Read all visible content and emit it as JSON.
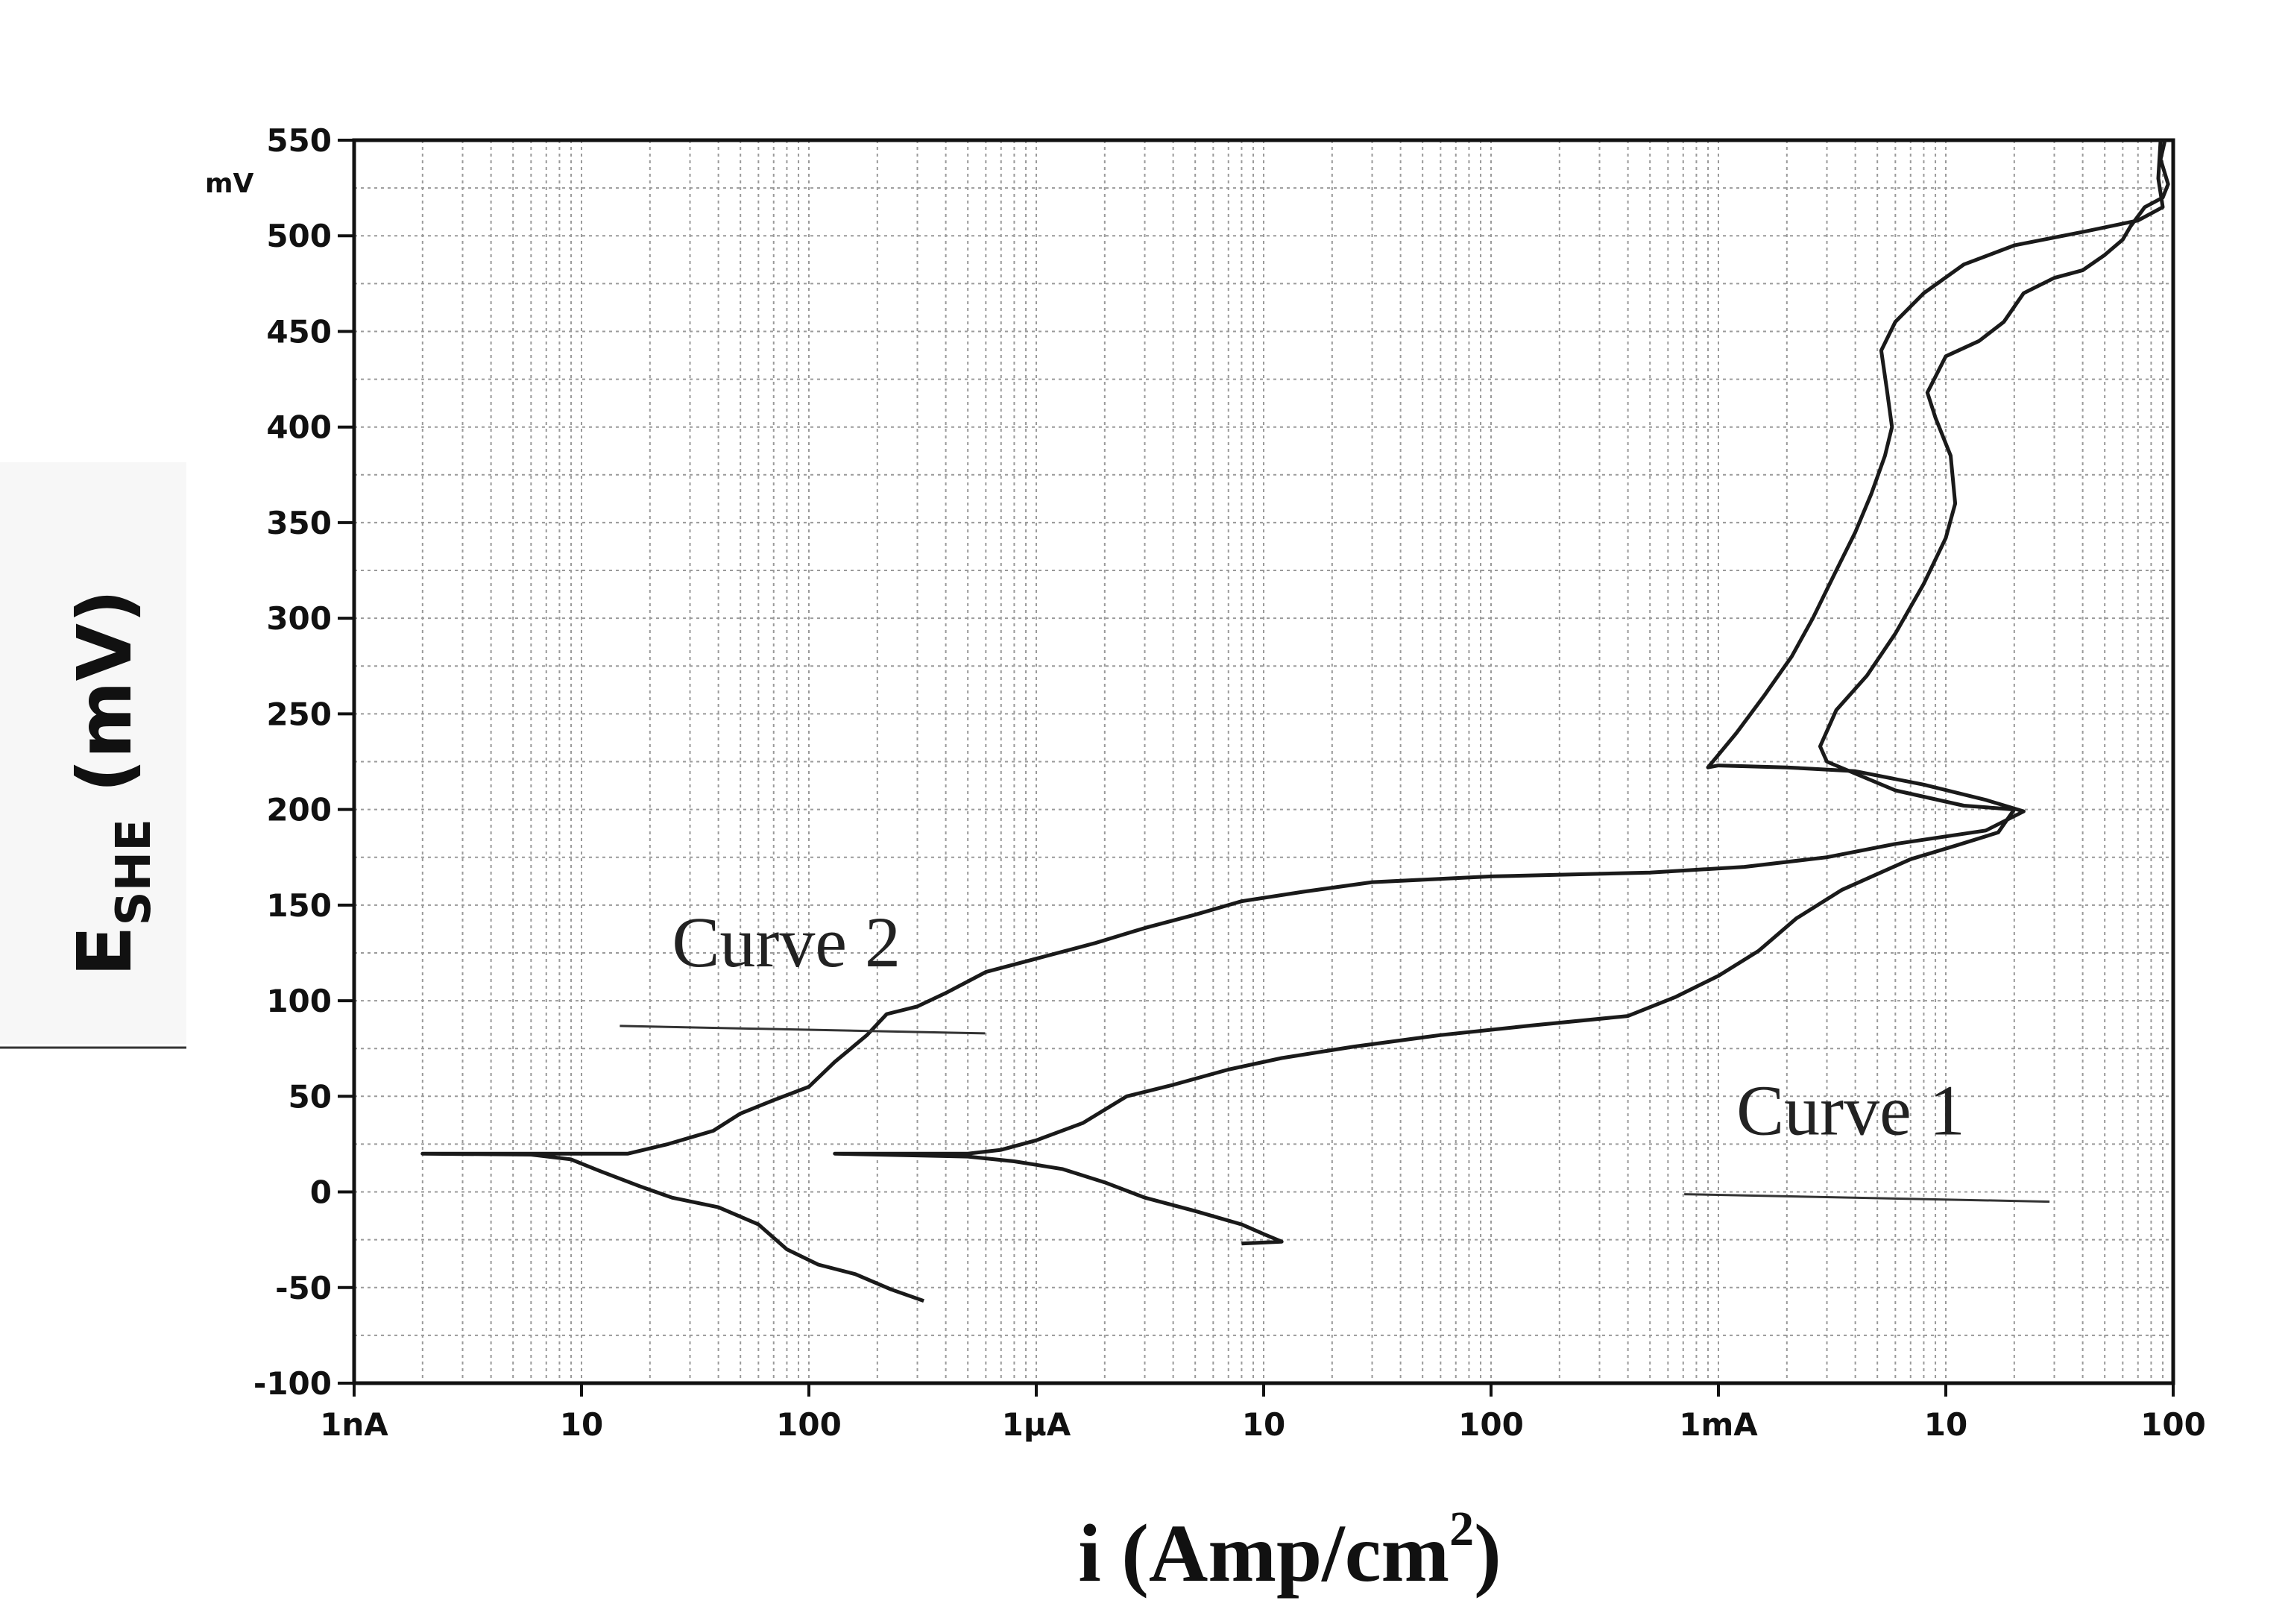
{
  "chart_data": {
    "type": "line",
    "title": "",
    "xscale": "log",
    "xlim": [
      1e-09,
      0.1
    ],
    "ylim": [
      -100,
      550
    ],
    "grid": true,
    "xlabel": "i (Amp/cm",
    "xlabel_sup": "2",
    "xlabel_end": ")",
    "ylabel": "E",
    "ylabel_sub": "SHE",
    "ylabel_end": " (mV)",
    "y_unit": "mV",
    "y_ticks": [
      {
        "value": -100,
        "label": "-100"
      },
      {
        "value": -50,
        "label": "-50"
      },
      {
        "value": 0,
        "label": "0"
      },
      {
        "value": 50,
        "label": "50"
      },
      {
        "value": 100,
        "label": "100"
      },
      {
        "value": 150,
        "label": "150"
      },
      {
        "value": 200,
        "label": "200"
      },
      {
        "value": 250,
        "label": "250"
      },
      {
        "value": 300,
        "label": "300"
      },
      {
        "value": 350,
        "label": "350"
      },
      {
        "value": 400,
        "label": "400"
      },
      {
        "value": 450,
        "label": "450"
      },
      {
        "value": 500,
        "label": "500"
      },
      {
        "value": 550,
        "label": "550"
      }
    ],
    "x_ticks": [
      {
        "value": 1e-09,
        "label": "1nA"
      },
      {
        "value": 1e-08,
        "label": "10"
      },
      {
        "value": 1e-07,
        "label": "100"
      },
      {
        "value": 1e-06,
        "label": "1µA"
      },
      {
        "value": 1e-05,
        "label": "10"
      },
      {
        "value": 0.0001,
        "label": "100"
      },
      {
        "value": 0.001,
        "label": "1mA"
      },
      {
        "value": 0.01,
        "label": "10"
      },
      {
        "value": 0.1,
        "label": "100"
      }
    ],
    "annotations": [
      {
        "text": "Curve 2",
        "x": 2.5e-08,
        "y": 118
      },
      {
        "text": "Curve 1",
        "x": 0.0012,
        "y": 30
      }
    ],
    "series": [
      {
        "name": "Curve 2",
        "points": [
          [
            3.2e-07,
            -57
          ],
          [
            2.3e-07,
            -51
          ],
          [
            1.6e-07,
            -43
          ],
          [
            1.1e-07,
            -38
          ],
          [
            8e-08,
            -30
          ],
          [
            6e-08,
            -17
          ],
          [
            4e-08,
            -8
          ],
          [
            2.5e-08,
            -3
          ],
          [
            1.8e-08,
            3
          ],
          [
            1.2e-08,
            11
          ],
          [
            9e-09,
            17
          ],
          [
            6e-09,
            19.5
          ],
          [
            2e-09,
            20
          ],
          [
            6e-09,
            20
          ],
          [
            1.6e-08,
            20
          ],
          [
            2.4e-08,
            25
          ],
          [
            3.8e-08,
            32
          ],
          [
            5e-08,
            41
          ],
          [
            7e-08,
            48
          ],
          [
            1e-07,
            55
          ],
          [
            1.3e-07,
            68
          ],
          [
            1.8e-07,
            82
          ],
          [
            2.2e-07,
            93
          ],
          [
            3e-07,
            97
          ],
          [
            4e-07,
            104
          ],
          [
            6e-07,
            115
          ],
          [
            1e-06,
            122
          ],
          [
            1.8e-06,
            130
          ],
          [
            3e-06,
            138
          ],
          [
            5e-06,
            145
          ],
          [
            8e-06,
            152
          ],
          [
            1.5e-05,
            157
          ],
          [
            3e-05,
            162
          ],
          [
            0.0001,
            165
          ],
          [
            0.0005,
            167
          ],
          [
            0.0013,
            170
          ],
          [
            0.003,
            175
          ],
          [
            0.006,
            182
          ],
          [
            0.015,
            189
          ],
          [
            0.022,
            199
          ],
          [
            0.015,
            205
          ],
          [
            0.008,
            213
          ],
          [
            0.004,
            220
          ],
          [
            0.002,
            222
          ],
          [
            0.001,
            223
          ],
          [
            0.0009,
            222
          ],
          [
            0.0012,
            240
          ],
          [
            0.0016,
            260
          ],
          [
            0.0021,
            280
          ],
          [
            0.0026,
            300
          ],
          [
            0.0033,
            325
          ],
          [
            0.004,
            345
          ],
          [
            0.0047,
            365
          ],
          [
            0.0054,
            385
          ],
          [
            0.0058,
            400
          ],
          [
            0.0055,
            420
          ],
          [
            0.0052,
            440
          ],
          [
            0.006,
            455
          ],
          [
            0.008,
            470
          ],
          [
            0.012,
            485
          ],
          [
            0.02,
            495
          ],
          [
            0.04,
            502
          ],
          [
            0.07,
            508
          ],
          [
            0.09,
            515
          ],
          [
            0.086,
            530
          ],
          [
            0.088,
            550
          ]
        ]
      },
      {
        "name": "Curve 1",
        "points": [
          [
            8e-06,
            -27
          ],
          [
            1.2e-05,
            -26
          ],
          [
            1e-05,
            -22
          ],
          [
            8e-06,
            -17
          ],
          [
            5e-06,
            -10
          ],
          [
            3e-06,
            -3
          ],
          [
            2e-06,
            5
          ],
          [
            1.3e-06,
            12
          ],
          [
            8e-07,
            16
          ],
          [
            5e-07,
            18.5
          ],
          [
            1.3e-07,
            20
          ],
          [
            5e-07,
            20
          ],
          [
            7e-07,
            22
          ],
          [
            1e-06,
            27
          ],
          [
            1.6e-06,
            36
          ],
          [
            2.5e-06,
            50
          ],
          [
            4e-06,
            56
          ],
          [
            7e-06,
            64
          ],
          [
            1.2e-05,
            70
          ],
          [
            2.5e-05,
            76
          ],
          [
            6e-05,
            82
          ],
          [
            0.00015,
            87
          ],
          [
            0.0004,
            92
          ],
          [
            0.00065,
            102
          ],
          [
            0.001,
            113
          ],
          [
            0.0015,
            126
          ],
          [
            0.0022,
            143
          ],
          [
            0.0035,
            158
          ],
          [
            0.007,
            174
          ],
          [
            0.011,
            181
          ],
          [
            0.017,
            188
          ],
          [
            0.02,
            200
          ],
          [
            0.012,
            202
          ],
          [
            0.006,
            210
          ],
          [
            0.003,
            225
          ],
          [
            0.0028,
            233
          ],
          [
            0.0033,
            252
          ],
          [
            0.0045,
            270
          ],
          [
            0.006,
            292
          ],
          [
            0.008,
            318
          ],
          [
            0.01,
            342
          ],
          [
            0.011,
            360
          ],
          [
            0.0105,
            385
          ],
          [
            0.009,
            405
          ],
          [
            0.0083,
            418
          ],
          [
            0.01,
            437
          ],
          [
            0.014,
            445
          ],
          [
            0.018,
            455
          ],
          [
            0.022,
            470
          ],
          [
            0.03,
            478
          ],
          [
            0.04,
            482
          ],
          [
            0.05,
            490
          ],
          [
            0.06,
            498
          ],
          [
            0.065,
            505
          ],
          [
            0.075,
            515
          ],
          [
            0.09,
            520
          ],
          [
            0.095,
            527
          ],
          [
            0.088,
            540
          ],
          [
            0.092,
            550
          ]
        ]
      }
    ]
  }
}
